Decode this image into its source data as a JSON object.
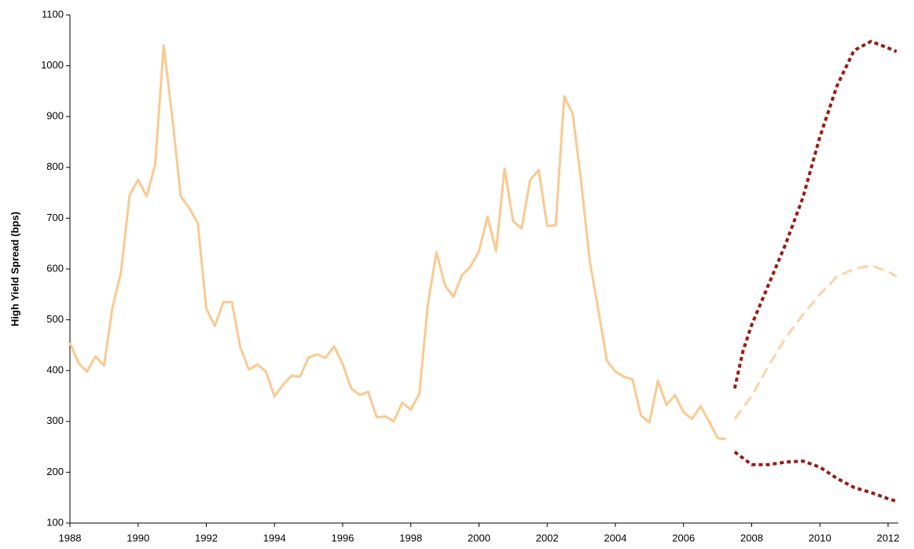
{
  "chart_data": {
    "type": "line",
    "ylabel": "High Yield Spread (bps)",
    "xlim": [
      1988,
      2012.3
    ],
    "xticks": [
      1988,
      1990,
      1992,
      1994,
      1996,
      1998,
      2000,
      2002,
      2004,
      2006,
      2008,
      2010,
      2012
    ],
    "ylim": [
      100,
      1100
    ],
    "yticks": [
      100,
      200,
      300,
      400,
      500,
      600,
      700,
      800,
      900,
      1000,
      1100
    ],
    "grid": false,
    "series": [
      {
        "color": "#fac990",
        "dash": "solid",
        "x": [
          1988,
          1988.25,
          1988.5,
          1988.75,
          1989,
          1989.25,
          1989.5,
          1989.75,
          1990,
          1990.25,
          1990.5,
          1990.75,
          1991,
          1991.25,
          1991.5,
          1991.75,
          1992,
          1992.25,
          1992.5,
          1992.75,
          1993,
          1993.25,
          1993.5,
          1993.75,
          1994,
          1994.25,
          1994.5,
          1994.75,
          1995,
          1995.25,
          1995.5,
          1995.75,
          1996,
          1996.25,
          1996.5,
          1996.75,
          1997,
          1997.25,
          1997.5,
          1997.75,
          1998,
          1998.25,
          1998.5,
          1998.75,
          1999,
          1999.25,
          1999.5,
          1999.75,
          2000,
          2000.25,
          2000.5,
          2000.75,
          2001,
          2001.25,
          2001.5,
          2001.75,
          2002,
          2002.25,
          2002.5,
          2002.75,
          2003,
          2003.25,
          2003.5,
          2003.75,
          2004,
          2004.25,
          2004.5,
          2004.75,
          2005,
          2005.25,
          2005.5,
          2005.75,
          2006,
          2006.25,
          2006.5,
          2006.75,
          2007,
          2007.25
        ],
        "values": [
          455,
          415,
          398,
          428,
          410,
          525,
          595,
          745,
          776,
          743,
          805,
          1040,
          900,
          743,
          720,
          690,
          522,
          488,
          535,
          535,
          445,
          402,
          412,
          398,
          349,
          372,
          390,
          388,
          426,
          432,
          425,
          448,
          413,
          365,
          352,
          358,
          308,
          310,
          300,
          337,
          323,
          355,
          530,
          633,
          568,
          545,
          588,
          605,
          635,
          703,
          635,
          798,
          694,
          680,
          775,
          795,
          685,
          686,
          940,
          905,
          770,
          615,
          520,
          420,
          398,
          388,
          383,
          312,
          298,
          380,
          332,
          352,
          318,
          305,
          330,
          300,
          267,
          265
        ]
      },
      {
        "color": "#9b1b12",
        "dash": "dotted",
        "x": [
          2007.5,
          2007.75,
          2008,
          2008.5,
          2009,
          2009.5,
          2010,
          2010.5,
          2011,
          2011.5,
          2012,
          2012.25
        ],
        "values": [
          365,
          440,
          490,
          570,
          650,
          740,
          860,
          960,
          1030,
          1048,
          1035,
          1028
        ]
      },
      {
        "color": "#fad3a6",
        "dash": "dashed",
        "x": [
          2007.5,
          2008,
          2008.5,
          2009,
          2009.5,
          2010,
          2010.5,
          2011,
          2011.5,
          2012,
          2012.25
        ],
        "values": [
          305,
          350,
          410,
          465,
          510,
          550,
          585,
          600,
          607,
          595,
          585
        ]
      },
      {
        "color": "#9b1b12",
        "dash": "dotted",
        "x": [
          2007.5,
          2008,
          2008.5,
          2009,
          2009.5,
          2010,
          2010.5,
          2011,
          2011.5,
          2012,
          2012.25
        ],
        "values": [
          240,
          215,
          215,
          220,
          222,
          210,
          188,
          170,
          160,
          148,
          143
        ]
      }
    ]
  }
}
